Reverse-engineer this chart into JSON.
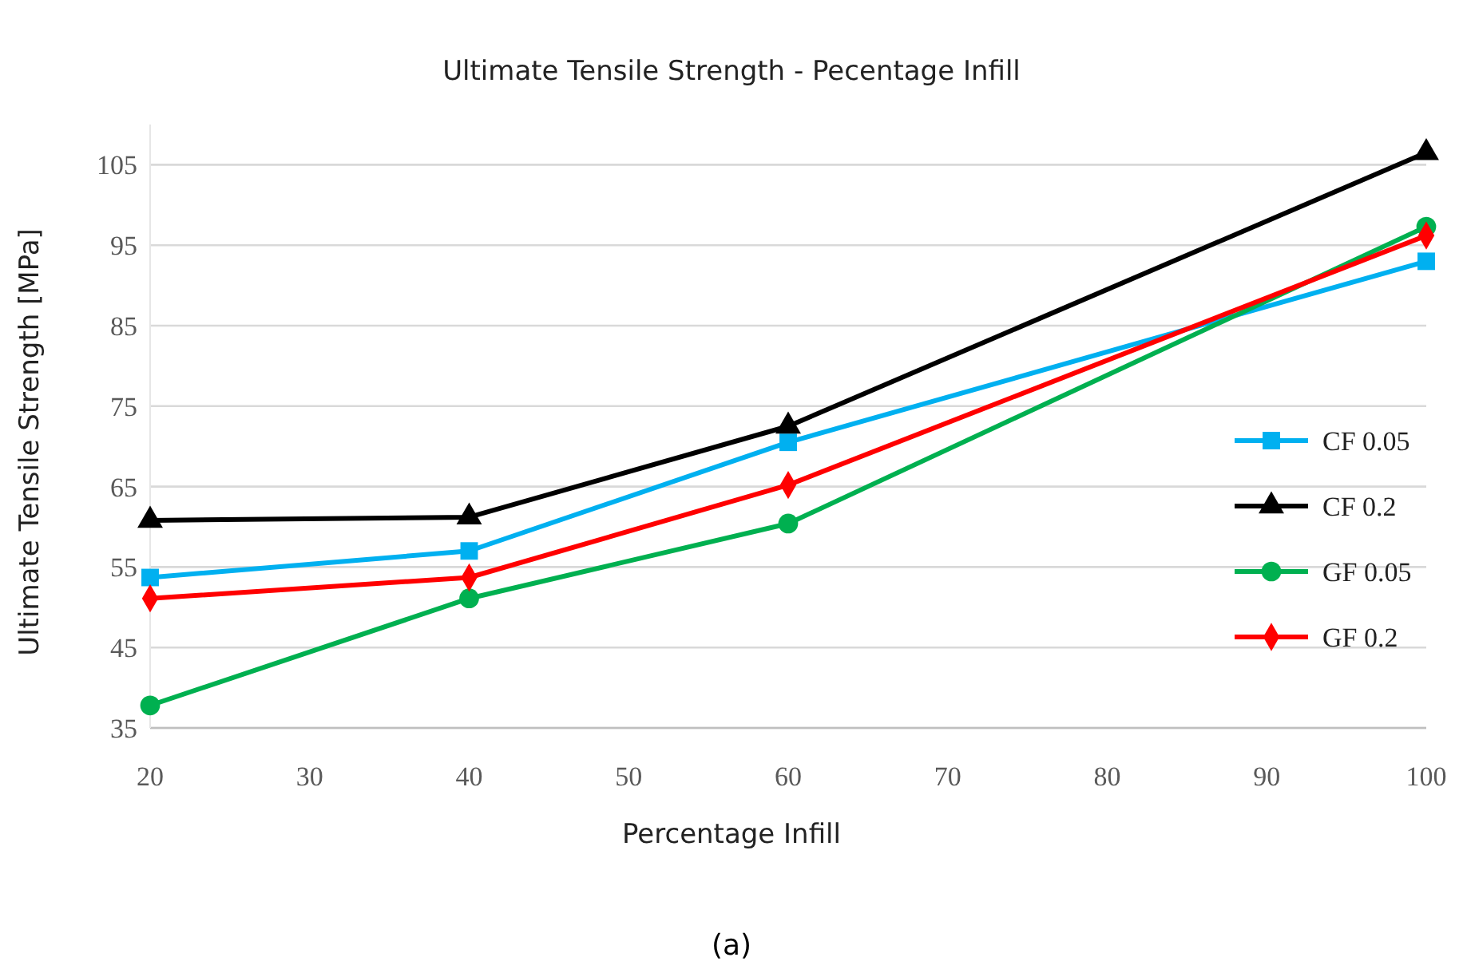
{
  "chart_data": {
    "type": "line",
    "title": "Ultimate Tensile Strength - Pecentage Infill",
    "xlabel": "Percentage Infill",
    "ylabel": "Ultimate Tensile Strength [MPa]",
    "x": [
      20,
      40,
      60,
      100
    ],
    "series": [
      {
        "name": "CF 0.05",
        "color": "#00b0f0",
        "marker": "square",
        "values": [
          53.7,
          57.0,
          70.5,
          93.0
        ]
      },
      {
        "name": "CF 0.2",
        "color": "#000000",
        "marker": "triangle",
        "values": [
          60.8,
          61.2,
          72.5,
          106.5
        ]
      },
      {
        "name": "GF 0.05",
        "color": "#00b050",
        "marker": "circle",
        "values": [
          37.8,
          51.1,
          60.4,
          97.3
        ]
      },
      {
        "name": "GF 0.2",
        "color": "#ff0000",
        "marker": "diamond",
        "values": [
          51.1,
          53.7,
          65.2,
          96.2
        ]
      }
    ],
    "xlim": [
      20,
      100
    ],
    "xticks": [
      20,
      30,
      40,
      50,
      60,
      70,
      80,
      90,
      100
    ],
    "ylim": [
      35,
      110
    ],
    "yticks": [
      35,
      45,
      55,
      65,
      75,
      85,
      95,
      105
    ],
    "grid": "y",
    "legend": "right",
    "line_style": "solid",
    "annotations": [
      "(a)"
    ]
  }
}
